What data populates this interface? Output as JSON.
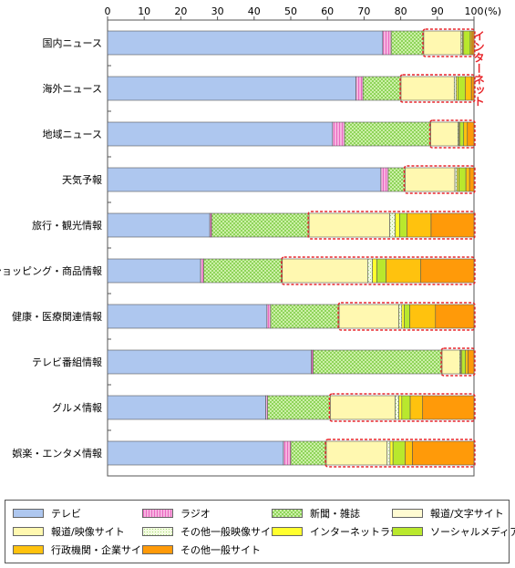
{
  "chart_data": {
    "type": "bar",
    "orientation": "horizontal",
    "stacked": true,
    "xlim": [
      0,
      100
    ],
    "x_ticks": [
      "0",
      "10",
      "20",
      "30",
      "40",
      "50",
      "60",
      "70",
      "80",
      "90",
      "100"
    ],
    "unit_label": "(%)",
    "annotation": "インターネット",
    "categories": [
      "国内ニュース",
      "海外ニュース",
      "地域ニュース",
      "天気予報",
      "旅行・観光情報",
      "ショッピング・商品情報",
      "健康・医療関連情報",
      "テレビ番組情報",
      "グルメ情報",
      "娯楽・エンタメ情報"
    ],
    "series": [
      {
        "name": "テレビ",
        "values": [
          75.1,
          67.8,
          61.4,
          74.6,
          27.9,
          25.4,
          43.5,
          55.6,
          43.2,
          48.0
        ]
      },
      {
        "name": "ラジオ",
        "values": [
          2.3,
          1.9,
          3.3,
          2.0,
          0.5,
          0.8,
          1.0,
          0.5,
          0.5,
          2.0
        ]
      },
      {
        "name": "新聞・雑誌",
        "values": [
          8.9,
          10.4,
          23.5,
          4.6,
          26.6,
          21.5,
          18.7,
          35.2,
          17.1,
          9.7
        ]
      },
      {
        "name": "報道/文字サイト",
        "values": [
          0,
          0,
          0,
          0,
          0,
          0,
          0,
          0,
          0,
          0
        ]
      },
      {
        "name": "報道/映像サイト",
        "values": [
          10.2,
          14.5,
          7.4,
          13.6,
          22.0,
          23.3,
          16.3,
          4.8,
          17.7,
          16.6
        ]
      },
      {
        "name": "その他一般映像サイト",
        "values": [
          0.4,
          0.6,
          0.3,
          0.6,
          1.5,
          1.3,
          0.8,
          0.3,
          1.0,
          0.8
        ]
      },
      {
        "name": "インターネットラジオ",
        "values": [
          0.3,
          0.4,
          0.3,
          0.5,
          1.2,
          1.2,
          0.7,
          0.3,
          0.8,
          0.8
        ]
      },
      {
        "name": "ソーシャルメディア",
        "values": [
          1.8,
          2.0,
          1.0,
          1.9,
          2.0,
          2.5,
          1.5,
          1.0,
          2.3,
          3.3
        ]
      },
      {
        "name": "行政機関・企業サイト",
        "values": [
          0.5,
          1.7,
          1.0,
          1.0,
          6.6,
          9.5,
          7.0,
          0.7,
          3.4,
          2.0
        ]
      },
      {
        "name": "その他一般サイト",
        "values": [
          0.5,
          0.7,
          1.8,
          1.2,
          11.7,
          14.5,
          10.5,
          1.6,
          14.0,
          16.8
        ]
      }
    ],
    "colors": {
      "テレビ": "#aec7ef",
      "ラジオ": "#f59bd2",
      "新聞・雑誌": "#a6e07a",
      "報道/文字サイト": "#fffbd2",
      "報道/映像サイト": "#fff8b0",
      "その他一般映像サイト": "#d7f2a2",
      "インターネットラジオ": "#ffff2e",
      "ソーシャルメディア": "#b9e82d",
      "行政機関・企業サイト": "#ffc20e",
      "その他一般サイト": "#ff9a09",
      "internet_outline": "#e8262b"
    }
  },
  "legend": {
    "items": [
      {
        "label": "テレビ",
        "color": "#aec7ef"
      },
      {
        "label": "ラジオ",
        "color": "#f59bd2"
      },
      {
        "label": "新聞・雑誌",
        "color": "#a6e07a"
      },
      {
        "label": "報道/文字サイト",
        "color": "#fffbd2"
      },
      {
        "label": "報道/映像サイト",
        "color": "#fff8b0"
      },
      {
        "label": "その他一般映像サイト",
        "color": "#d7f2a2"
      },
      {
        "label": "インターネットラジオ",
        "color": "#ffff2e"
      },
      {
        "label": "ソーシャルメディア",
        "color": "#b9e82d"
      },
      {
        "label": "行政機関・企業サイト",
        "color": "#ffc20e"
      },
      {
        "label": "その他一般サイト",
        "color": "#ff9a09"
      }
    ]
  }
}
